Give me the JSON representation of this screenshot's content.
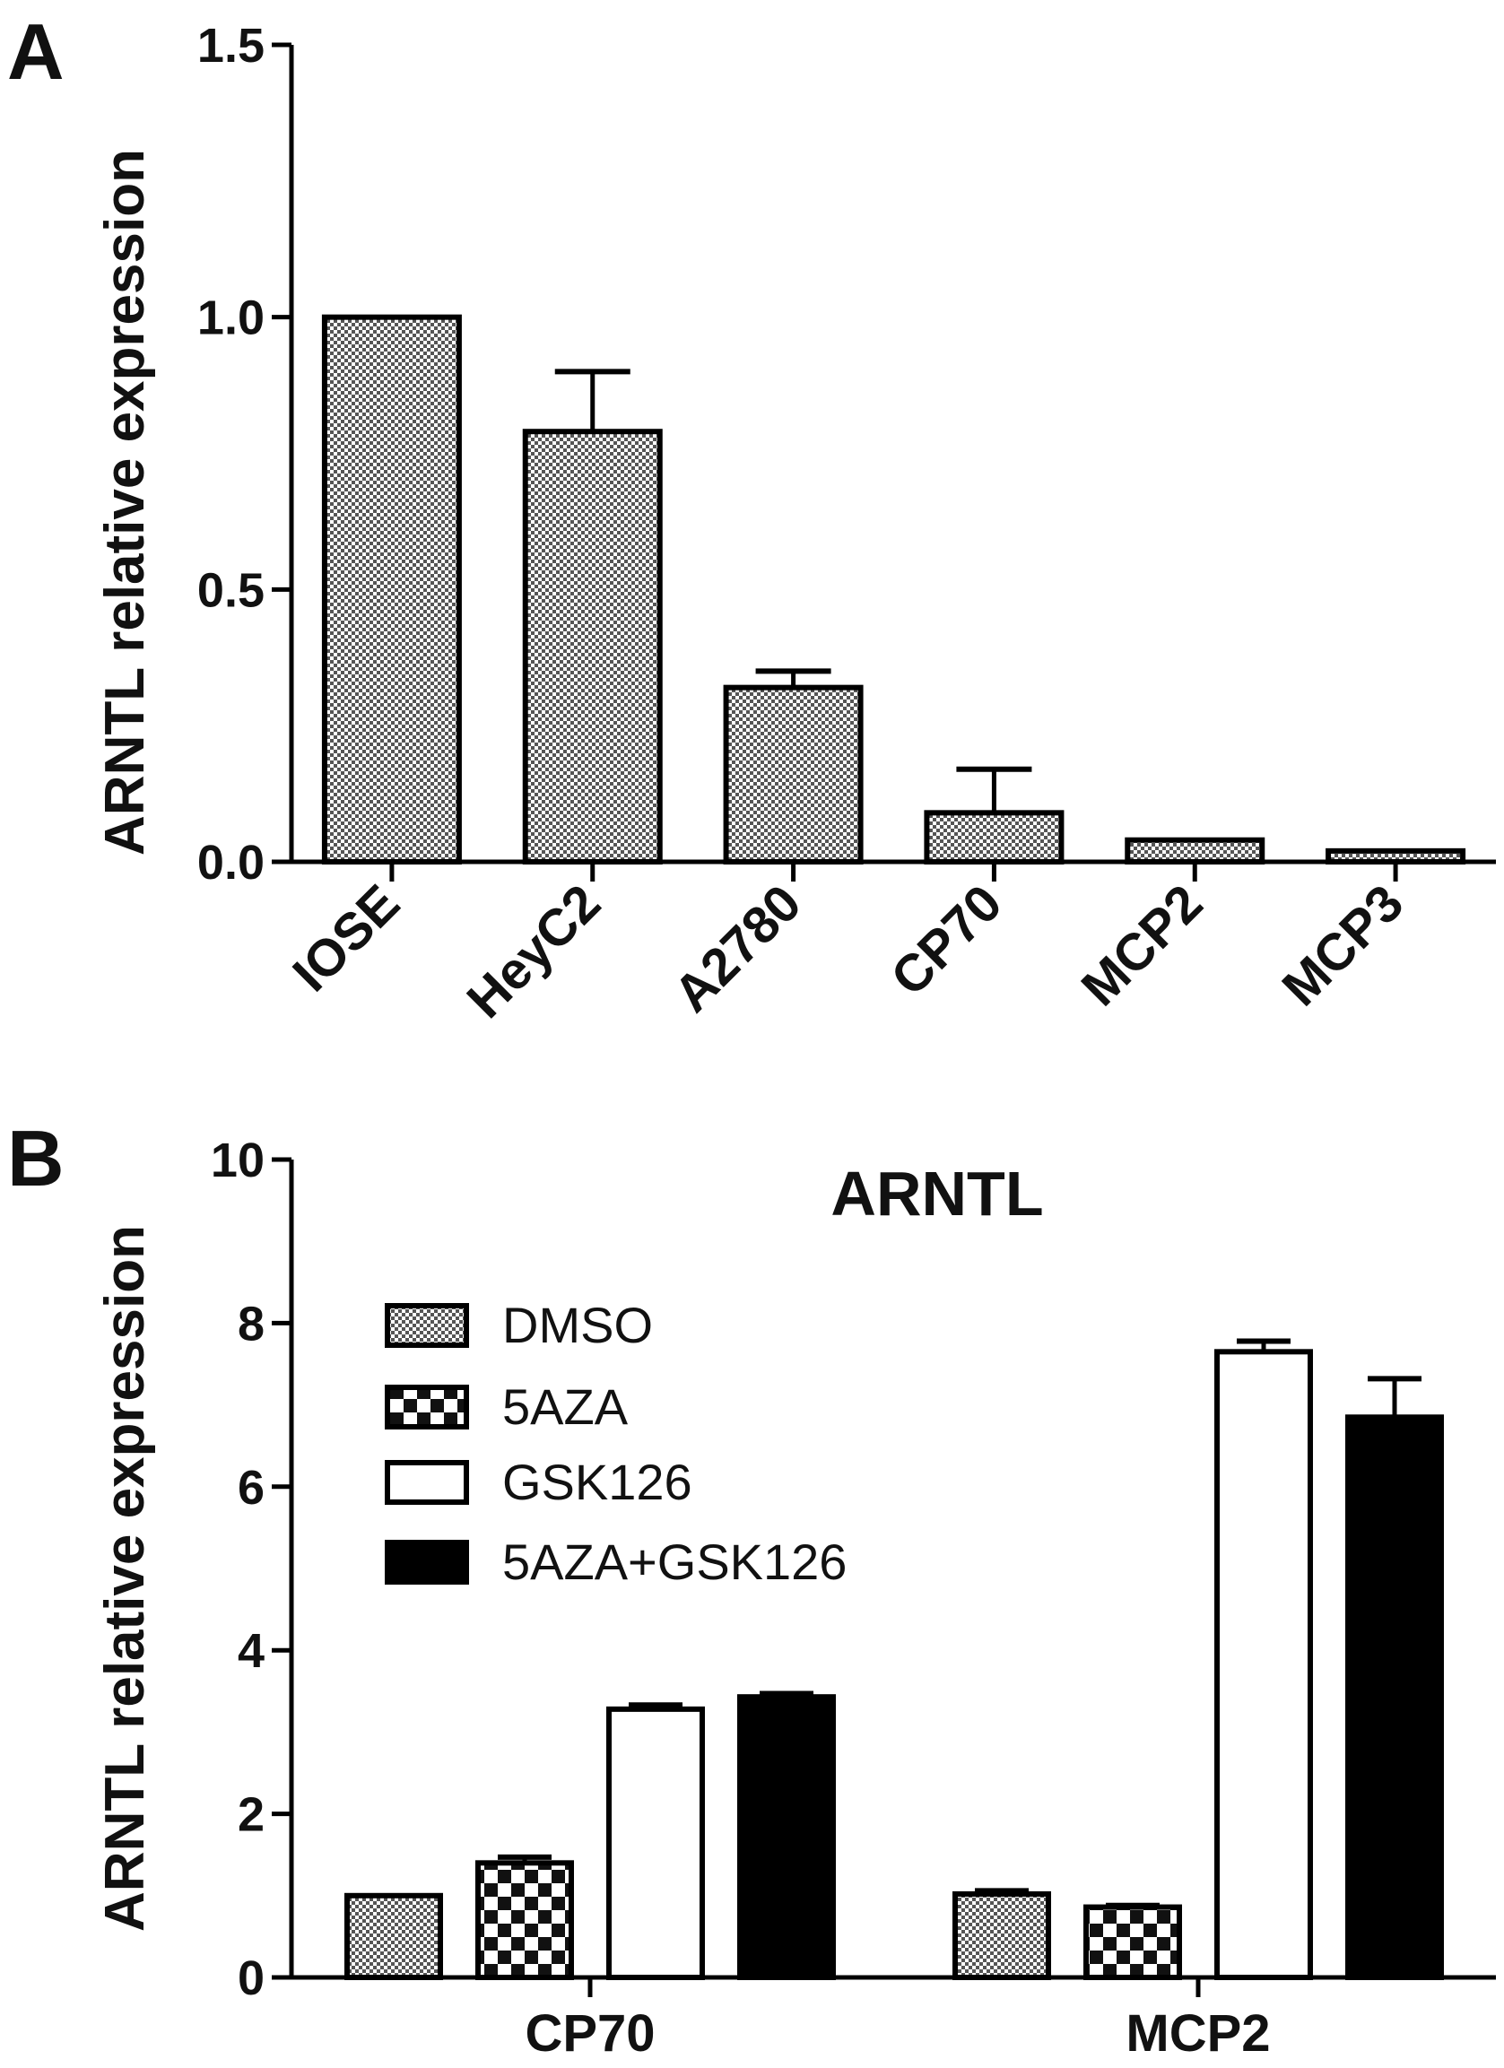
{
  "chart_data": [
    {
      "panel": "A",
      "type": "bar",
      "ylabel": "ARNTL relative expression",
      "ylim": [
        0,
        1.5
      ],
      "yticks": [
        "0.0",
        "0.5",
        "1.0",
        "1.5"
      ],
      "categories": [
        "IOSE",
        "HeyC2",
        "A2780",
        "CP70",
        "MCP2",
        "MCP3"
      ],
      "values": [
        1.0,
        0.79,
        0.32,
        0.09,
        0.04,
        0.02
      ],
      "errors": [
        0.0,
        0.11,
        0.03,
        0.08,
        0.0,
        0.0
      ],
      "colors": {
        "bar_fill": "#b5b5b5",
        "stroke": "#000000"
      }
    },
    {
      "panel": "B",
      "type": "bar",
      "title": "ARNTL",
      "ylabel": "ARNTL relative expression",
      "ylim": [
        0,
        10
      ],
      "yticks": [
        "0",
        "2",
        "4",
        "6",
        "8",
        "10"
      ],
      "categories": [
        "CP70",
        "MCP2"
      ],
      "series": [
        {
          "name": "DMSO",
          "values": [
            1.0,
            1.02
          ],
          "errors": [
            0.0,
            0.04
          ],
          "pattern": "fine-checker"
        },
        {
          "name": "5AZA",
          "values": [
            1.4,
            0.86
          ],
          "errors": [
            0.07,
            0.02
          ],
          "pattern": "coarse-checker"
        },
        {
          "name": "GSK126",
          "values": [
            3.28,
            7.65
          ],
          "errors": [
            0.05,
            0.13
          ],
          "pattern": "white"
        },
        {
          "name": "5AZA+GSK126",
          "values": [
            3.43,
            6.85
          ],
          "errors": [
            0.04,
            0.47
          ],
          "pattern": "black"
        }
      ],
      "legend_position": "top-left"
    }
  ]
}
